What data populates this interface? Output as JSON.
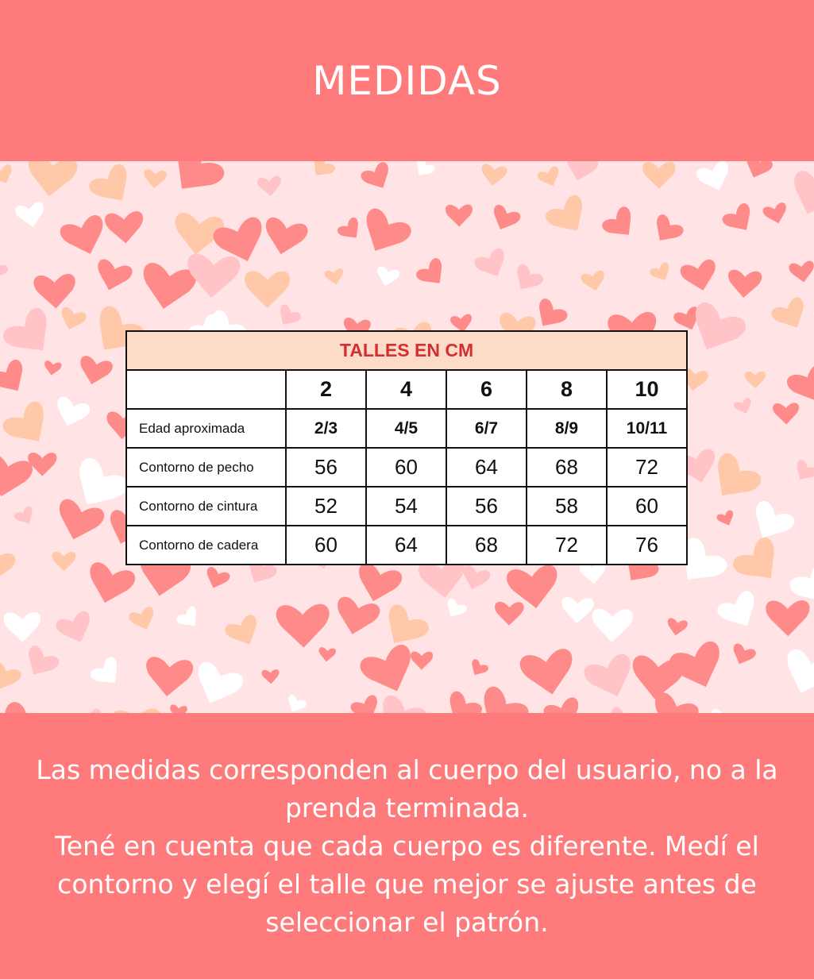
{
  "header": {
    "title": "MEDIDAS"
  },
  "colors": {
    "banner": "#ff7b7b",
    "background": "#ffe3e5",
    "table_title_bg": "#fcdcc8",
    "table_title_text": "#d32f2f",
    "heart_coral": "#ff8a8a",
    "heart_white": "#ffffff",
    "heart_peach": "#ffc8a8",
    "heart_pink": "#ffc3c8"
  },
  "table": {
    "title": "TALLES EN CM",
    "sizes": [
      "2",
      "4",
      "6",
      "8",
      "10"
    ],
    "rows": [
      {
        "label": "Edad aproximada",
        "values": [
          "2/3",
          "4/5",
          "6/7",
          "8/9",
          "10/11"
        ]
      },
      {
        "label": "Contorno de pecho",
        "values": [
          "56",
          "60",
          "64",
          "68",
          "72"
        ]
      },
      {
        "label": "Contorno de cintura",
        "values": [
          "52",
          "54",
          "56",
          "58",
          "60"
        ]
      },
      {
        "label": "Contorno de cadera",
        "values": [
          "60",
          "64",
          "68",
          "72",
          "76"
        ]
      }
    ]
  },
  "footer": {
    "line1": "Las medidas corresponden al cuerpo del usuario, no a la prenda terminada.",
    "line2": "Tené en cuenta que cada cuerpo es diferente. Medí el contorno y elegí el talle que mejor se ajuste antes de seleccionar el patrón."
  },
  "background_pattern": {
    "icon": "heart-icon"
  }
}
